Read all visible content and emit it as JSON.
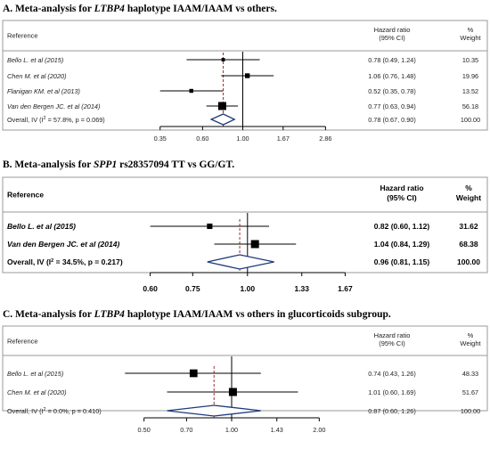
{
  "chart_data": [
    {
      "type": "forest",
      "title_prefix": "A. Meta-analysis for ",
      "title_gene": "LTBP4",
      "title_suffix": " haplotype IAAM/IAAM vs others.",
      "headers": {
        "reference": "Reference",
        "hr_1": "Hazard ratio",
        "hr_2": "(95% CI)",
        "w_1": "%",
        "w_2": "Weight"
      },
      "studies": [
        {
          "label": "Bello L. et al (2015)",
          "hr": 0.78,
          "lo": 0.49,
          "hi": 1.24,
          "ci_text": "0.78 (0.49, 1.24)",
          "weight": "10.35"
        },
        {
          "label": "Chen M. et al (2020)",
          "hr": 1.06,
          "lo": 0.76,
          "hi": 1.48,
          "ci_text": "1.06 (0.76, 1.48)",
          "weight": "19.96"
        },
        {
          "label": "Flanigan KM. et al (2013)",
          "hr": 0.52,
          "lo": 0.35,
          "hi": 0.78,
          "ci_text": "0.52 (0.35, 0.78)",
          "weight": "13.52"
        },
        {
          "label": "Van den Bergen JC. et al (2014)",
          "hr": 0.77,
          "lo": 0.63,
          "hi": 0.94,
          "ci_text": "0.77 (0.63, 0.94)",
          "weight": "56.18"
        }
      ],
      "overall": {
        "label_a": "Overall, IV (I",
        "label_b": " = 57.8%, p = 0.069)",
        "hr": 0.78,
        "lo": 0.67,
        "hi": 0.9,
        "ci_text": "0.78 (0.67, 0.90)",
        "weight": "100.00"
      },
      "ticks": [
        "0.35",
        "0.60",
        "1.00",
        "1.67",
        "2.86"
      ],
      "xlim": [
        0.25,
        4.0
      ],
      "x_scale": "log"
    },
    {
      "type": "forest",
      "title_prefix": "B. Meta-analysis for ",
      "title_gene": "SPP1",
      "title_suffix": " rs28357094 TT vs GG/GT.",
      "headers": {
        "reference": "Reference",
        "hr_1": "Hazard ratio",
        "hr_2": "(95% CI)",
        "w_1": "%",
        "w_2": "Weight"
      },
      "studies": [
        {
          "label": "Bello L. et al (2015)",
          "hr": 0.82,
          "lo": 0.6,
          "hi": 1.12,
          "ci_text": "0.82 (0.60, 1.12)",
          "weight": "31.62"
        },
        {
          "label": "Van den Bergen JC. et al (2014)",
          "hr": 1.04,
          "lo": 0.84,
          "hi": 1.29,
          "ci_text": "1.04 (0.84, 1.29)",
          "weight": "68.38"
        }
      ],
      "overall": {
        "label_a": "Overall, IV (I",
        "label_b": " = 34.5%, p = 0.217)",
        "hr": 0.96,
        "lo": 0.81,
        "hi": 1.15,
        "ci_text": "0.96 (0.81, 1.15)",
        "weight": "100.00"
      },
      "ticks": [
        "0.60",
        "0.75",
        "1.00",
        "1.33",
        "1.67"
      ],
      "xlim": [
        0.55,
        1.9
      ],
      "x_scale": "log"
    },
    {
      "type": "forest",
      "title_prefix": "C. Meta-analysis for ",
      "title_gene": "LTBP4",
      "title_suffix": " haplotype IAAM/IAAM vs others in glucorticoids subgroup.",
      "headers": {
        "reference": "Reference",
        "hr_1": "Hazard ratio",
        "hr_2": "(95% CI)",
        "w_1": "%",
        "w_2": "Weight"
      },
      "studies": [
        {
          "label": "Bello L. et al (2015)",
          "hr": 0.74,
          "lo": 0.43,
          "hi": 1.26,
          "ci_text": "0.74 (0.43, 1.26)",
          "weight": "48.33"
        },
        {
          "label": "Chen M. et al (2020)",
          "hr": 1.01,
          "lo": 0.6,
          "hi": 1.69,
          "ci_text": "1.01 (0.60, 1.69)",
          "weight": "51.67"
        }
      ],
      "overall": {
        "label_a": "Overall, IV (I",
        "label_b": " = 0.0%, p = 0.410)",
        "hr": 0.87,
        "lo": 0.6,
        "hi": 1.26,
        "ci_text": "0.87 (0.60, 1.26)",
        "weight": "100.00"
      },
      "ticks": [
        "0.50",
        "0.70",
        "1.00",
        "1.43",
        "2.00"
      ],
      "xlim": [
        0.4,
        2.5
      ],
      "x_scale": "log"
    }
  ],
  "colors": {
    "box": "#000000",
    "diamond": "#1f3a7a",
    "dashed_line": "#a0302a",
    "frame": "#9a9a9a",
    "text": "#222222"
  }
}
